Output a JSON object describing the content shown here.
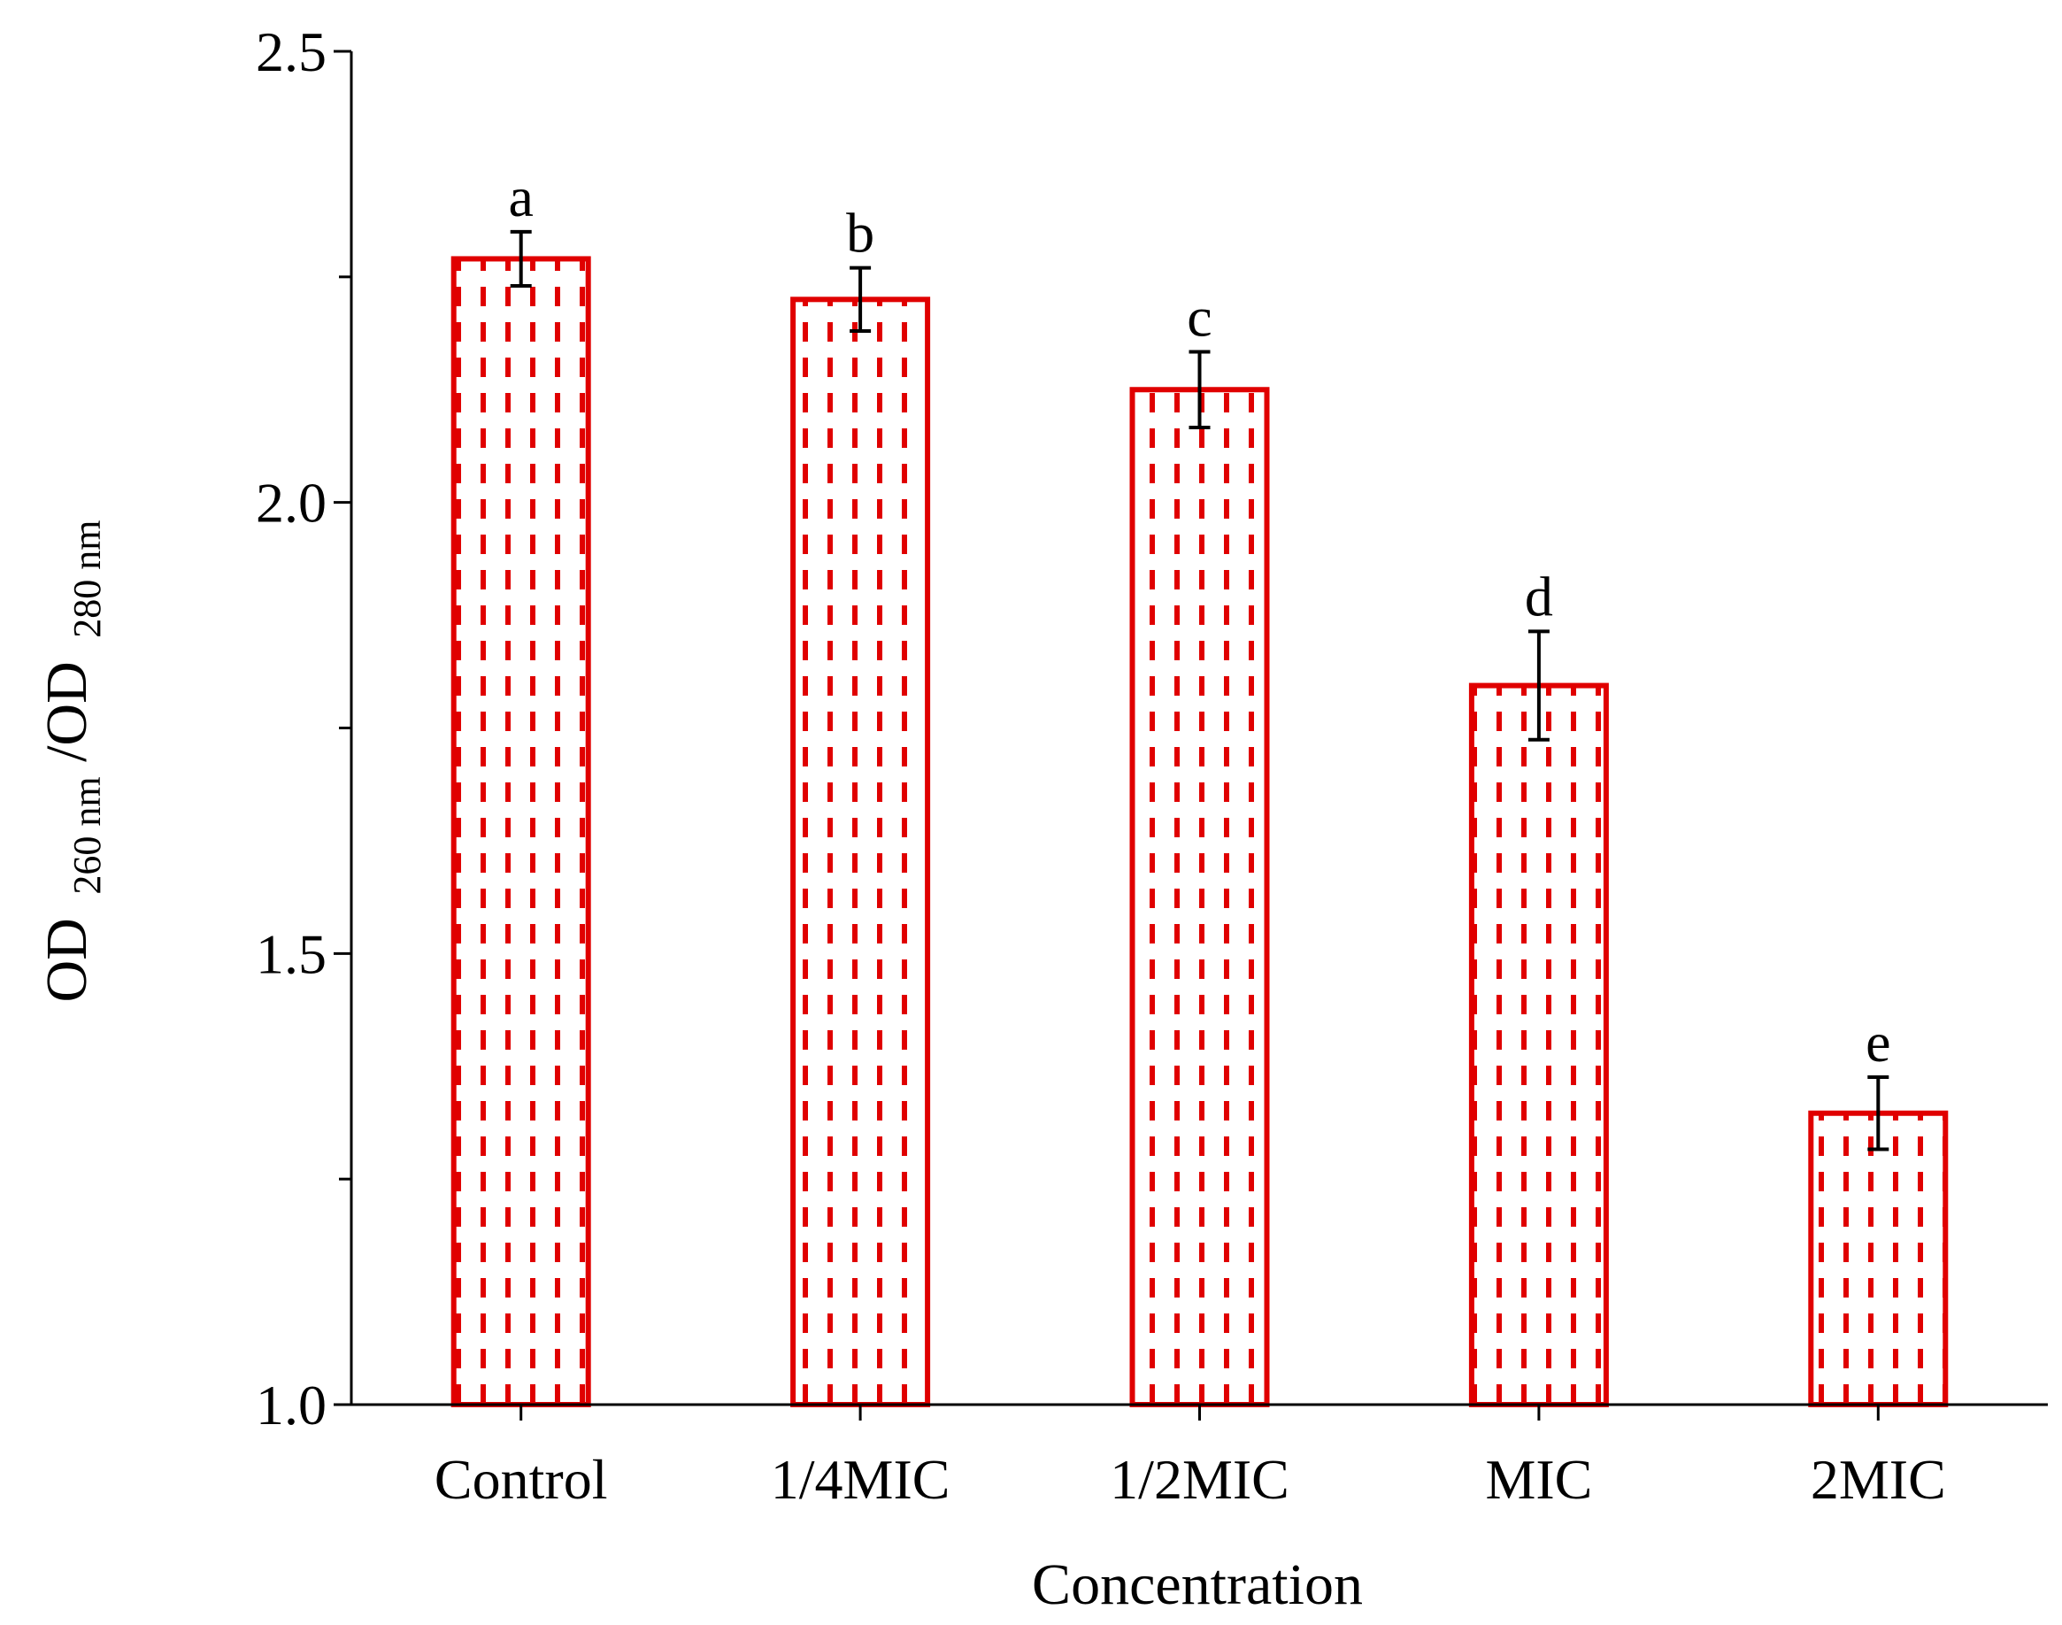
{
  "chart_data": {
    "type": "bar",
    "title": "",
    "xlabel": "Concentration",
    "ylabel": {
      "prefix": "OD",
      "sub1": "260 nm",
      "middle": "/OD",
      "sub2": "280 nm"
    },
    "categories": [
      "Control",
      "1/4MIC",
      "1/2MIC",
      "MIC",
      "2MIC"
    ],
    "values": [
      2.27,
      2.225,
      2.125,
      1.797,
      1.323
    ],
    "errors": [
      0.03,
      0.035,
      0.042,
      0.06,
      0.04
    ],
    "significance": [
      "a",
      "b",
      "c",
      "d",
      "e"
    ],
    "ylim": [
      1.0,
      2.5
    ],
    "yticks_major": [
      1.0,
      1.5,
      2.0,
      2.5
    ],
    "yticks_major_labels": [
      "1.0",
      "1.5",
      "2.0",
      "2.5"
    ],
    "yticks_minor": [
      1.25,
      1.75,
      2.25
    ],
    "grid": false,
    "colors": {
      "bar_stroke": "#e00000",
      "bar_pattern": "#e00000",
      "bar_fill": "#ffffff",
      "axis": "#000000",
      "error_bar": "#000000"
    }
  }
}
